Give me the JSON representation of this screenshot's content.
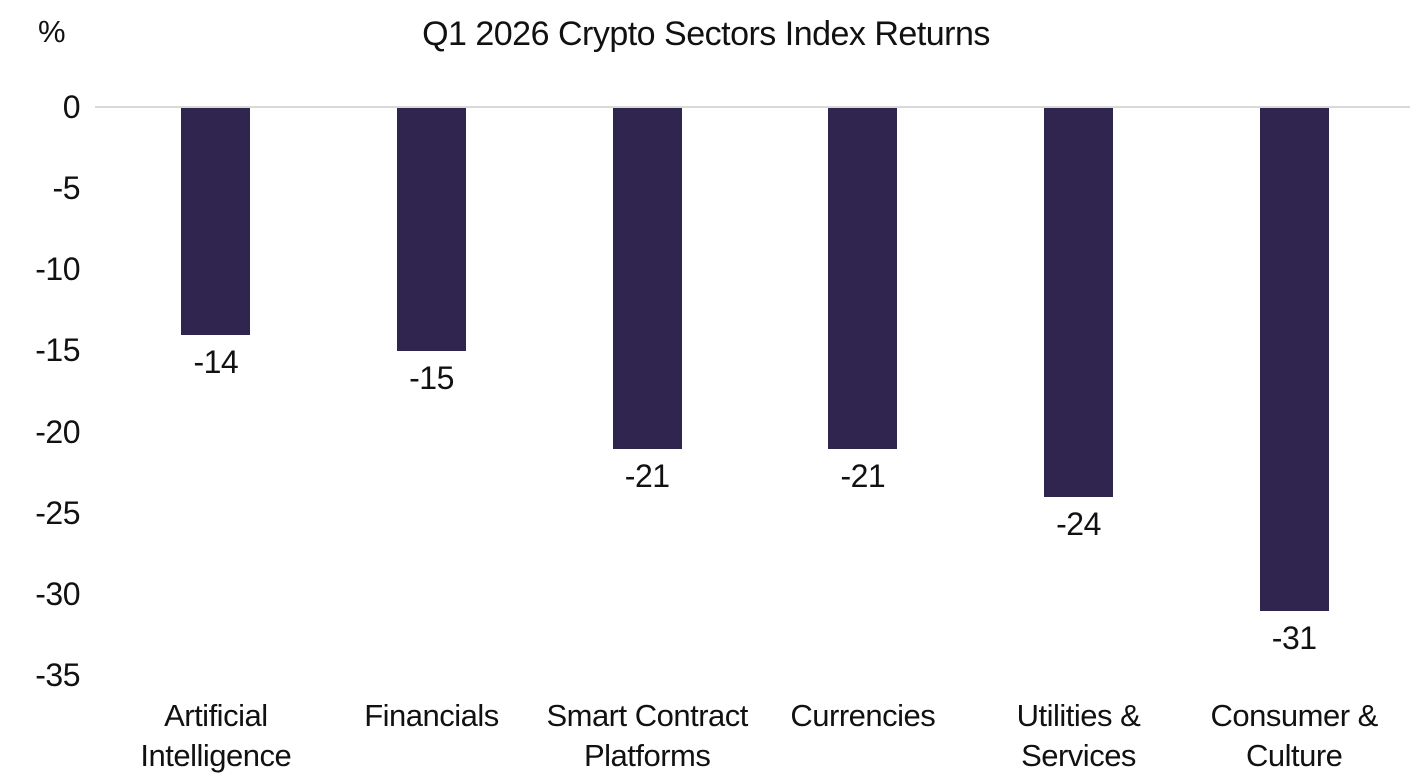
{
  "chart_data": {
    "type": "bar",
    "title": "Q1 2026 Crypto Sectors Index Returns",
    "unit_label": "%",
    "categories": [
      "Artificial Intelligence",
      "Financials",
      "Smart Contract Platforms",
      "Currencies",
      "Utilities & Services",
      "Consumer & Culture"
    ],
    "category_lines": [
      [
        "Artificial",
        "Intelligence"
      ],
      [
        "Financials"
      ],
      [
        "Smart Contract",
        "Platforms"
      ],
      [
        "Currencies"
      ],
      [
        "Utilities &",
        "Services"
      ],
      [
        "Consumer &",
        "Culture"
      ]
    ],
    "values": [
      -14,
      -15,
      -21,
      -21,
      -24,
      -31
    ],
    "data_labels": [
      "-14",
      "-15",
      "-21",
      "-21",
      "-24",
      "-31"
    ],
    "ylabel": "%",
    "ylim": [
      -35,
      0
    ],
    "yticks": [
      0,
      -5,
      -10,
      -15,
      -20,
      -25,
      -30,
      -35
    ],
    "ytick_labels": [
      "0",
      "-5",
      "-10",
      "-15",
      "-20",
      "-25",
      "-30",
      "-35"
    ],
    "grid": false,
    "legend": "none",
    "data_label_position": "below-bar",
    "colors": {
      "bar": "#2f254e",
      "axis_line": "#d9d9d9",
      "text": "#111111",
      "background": "#ffffff"
    }
  }
}
